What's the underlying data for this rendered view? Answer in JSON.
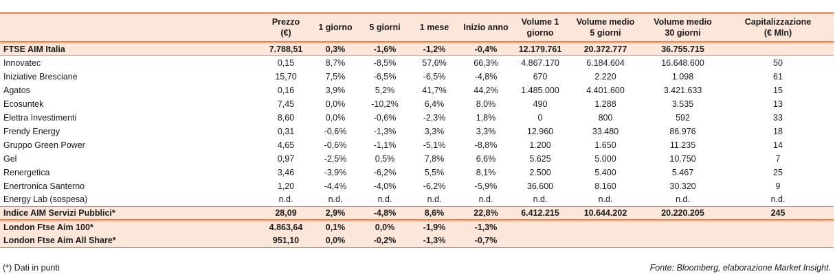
{
  "columns": [
    "",
    "Prezzo (€)",
    "1 giorno",
    "5 giorni",
    "1 mese",
    "Inizio anno",
    "Volume 1 giorno",
    "Volume medio 5 giorni",
    "Volume medio 30 giorni",
    "Capitalizzazione (€ Mln)"
  ],
  "header": {
    "c1a": "Prezzo",
    "c1b": "(€)",
    "c2": "1 giorno",
    "c3": "5 giorni",
    "c4": "1 mese",
    "c5": "Inizio anno",
    "c6a": "Volume 1",
    "c6b": "giorno",
    "c7a": "Volume medio",
    "c7b": "5 giorni",
    "c8a": "Volume medio",
    "c8b": "30 giorni",
    "c9a": "Capitalizzazione",
    "c9b": "(€ Mln)"
  },
  "ftse": [
    "FTSE AIM Italia",
    "7.788,51",
    "0,3%",
    "-1,6%",
    "-1,2%",
    "-0,4%",
    "12.179.761",
    "20.372.777",
    "36.755.715",
    ""
  ],
  "rows": [
    [
      "Innovatec",
      "0,15",
      "8,7%",
      "-8,5%",
      "57,6%",
      "66,3%",
      "4.867.170",
      "6.184.604",
      "16.648.600",
      "50"
    ],
    [
      "Iniziative Bresciane",
      "15,70",
      "7,5%",
      "-6,5%",
      "-6,5%",
      "-4,8%",
      "670",
      "2.220",
      "1.098",
      "61"
    ],
    [
      "Agatos",
      "0,16",
      "3,9%",
      "5,2%",
      "41,7%",
      "44,2%",
      "1.485.000",
      "4.401.600",
      "3.421.633",
      "15"
    ],
    [
      "Ecosuntek",
      "7,45",
      "0,0%",
      "-10,2%",
      "6,4%",
      "8,0%",
      "490",
      "1.288",
      "3.535",
      "13"
    ],
    [
      "Elettra Investimenti",
      "8,60",
      "0,0%",
      "-0,6%",
      "-2,3%",
      "1,8%",
      "0",
      "800",
      "592",
      "33"
    ],
    [
      "Frendy Energy",
      "0,31",
      "-0,6%",
      "-1,3%",
      "3,3%",
      "3,3%",
      "12.960",
      "33.480",
      "86.976",
      "18"
    ],
    [
      "Gruppo Green Power",
      "4,65",
      "-0,6%",
      "-1,1%",
      "-5,1%",
      "-8,8%",
      "1.200",
      "1.650",
      "11.235",
      "14"
    ],
    [
      "Gel",
      "0,97",
      "-2,5%",
      "0,5%",
      "7,8%",
      "6,6%",
      "5.625",
      "5.000",
      "10.750",
      "7"
    ],
    [
      "Renergetica",
      "3,46",
      "-3,9%",
      "-6,2%",
      "5,5%",
      "8,1%",
      "2.500",
      "5.400",
      "5.467",
      "25"
    ],
    [
      "Enertronica Santerno",
      "1,20",
      "-4,4%",
      "-4,0%",
      "-6,2%",
      "-5,9%",
      "36.600",
      "8.160",
      "30.320",
      "9"
    ],
    [
      "Energy Lab (sospesa)",
      "n.d.",
      "n.d.",
      "n.d.",
      "n.d.",
      "n.d.",
      "n.d.",
      "n.d.",
      "n.d.",
      "n.d."
    ]
  ],
  "index": [
    "Indice AIM Servizi Pubblici*",
    "28,09",
    "2,9%",
    "-4,8%",
    "8,6%",
    "22,8%",
    "6.412.215",
    "10.644.202",
    "20.220.205",
    "245"
  ],
  "london": [
    [
      "London Ftse Aim 100*",
      "4.863,64",
      "0,1%",
      "0,0%",
      "-1,9%",
      "-1,3%",
      "",
      "",
      "",
      ""
    ],
    [
      "London Ftse Aim All Share*",
      "951,10",
      "0,0%",
      "-0,2%",
      "-1,3%",
      "-0,7%",
      "",
      "",
      "",
      ""
    ]
  ],
  "footer": {
    "note": "(*) Dati in punti",
    "source": "Fonte: Bloomberg, elaborazione Market Insight."
  },
  "colors": {
    "accent": "#e8825a",
    "band": "#fbe6d9"
  }
}
